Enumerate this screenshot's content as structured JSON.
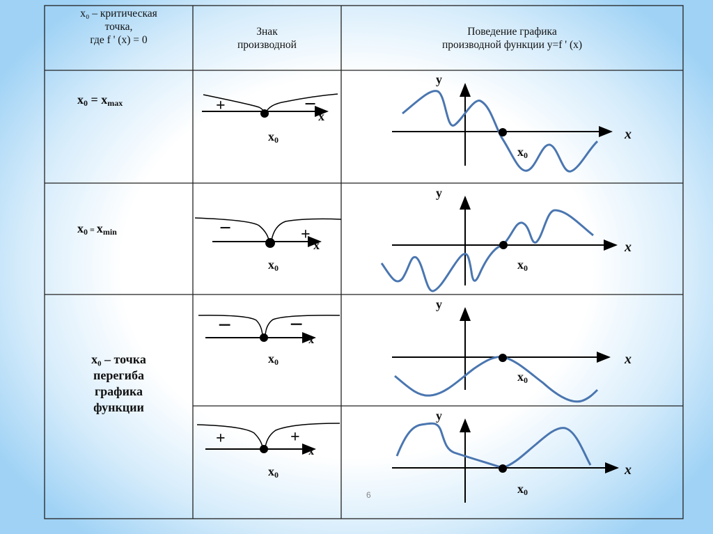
{
  "header": {
    "col1": [
      "x₀ – критическая",
      "точка,",
      "где f ' (x) = 0"
    ],
    "col2": [
      "Знак",
      "производной"
    ],
    "col3": [
      "Поведение графика",
      "производной функции y=f ' (x)"
    ]
  },
  "rows": [
    {
      "label_main": "x",
      "label_sub0": "0",
      "label_eq": " = ",
      "label_rhs": "x",
      "label_rhs_sub": "max",
      "signs": [
        "+",
        "−"
      ]
    },
    {
      "label_main": "x",
      "label_sub0": "0",
      "label_eq": " = ",
      "label_rhs": "x",
      "label_rhs_sub": "min",
      "signs": [
        "−",
        "+"
      ]
    },
    {
      "label_lines": [
        "x₀ – точка",
        "перегиба",
        "графика",
        "функции"
      ],
      "signs": [
        "−",
        "−"
      ]
    },
    {
      "signs": [
        "+",
        "+"
      ]
    }
  ],
  "axis": {
    "x": "x",
    "y": "y",
    "x0": "x",
    "x0_sub": "0"
  },
  "page_number": "6",
  "colors": {
    "curve": "#4a76b0",
    "line": "#000000",
    "background": "#9fd2f5"
  }
}
